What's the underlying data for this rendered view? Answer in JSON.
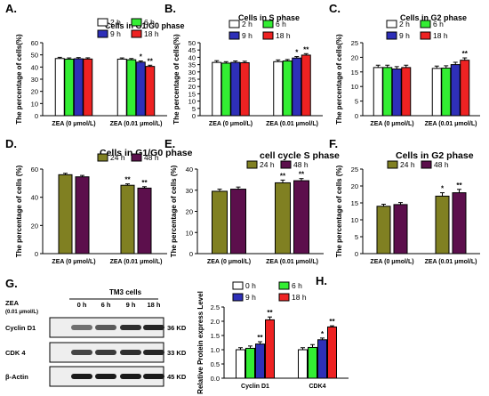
{
  "panels": [
    {
      "letter": "A.",
      "chart_data": {
        "type": "bar",
        "title": "Cells in G1/G0 phase",
        "ylabel": "The percentage of cells(%)",
        "xlabel": "",
        "ylim": [
          0,
          60
        ],
        "yticks": [
          0,
          10,
          20,
          30,
          40,
          50,
          60
        ],
        "categories": [
          "ZEA (0 μmol/L)",
          "ZEA (0.01 μmol/L)"
        ],
        "legend_position": "top-right",
        "series": [
          {
            "name": "2 h",
            "color": "#ffffff",
            "values": [
              47,
              46.5
            ],
            "err": [
              1.0,
              1.0
            ]
          },
          {
            "name": "6 h",
            "color": "#33ee33",
            "values": [
              46.5,
              46
            ],
            "err": [
              1.0,
              1.0
            ]
          },
          {
            "name": "9 h",
            "color": "#2e2fb8",
            "values": [
              46.8,
              44
            ],
            "err": [
              1.0,
              1.0
            ]
          },
          {
            "name": "18 h",
            "color": "#ee2222",
            "values": [
              46.6,
              40.5
            ],
            "err": [
              1.0,
              1.0
            ]
          }
        ],
        "annotations": [
          "",
          "",
          "",
          "",
          "",
          "",
          "*",
          "**"
        ]
      }
    },
    {
      "letter": "B.",
      "chart_data": {
        "type": "bar",
        "title": "Cells in S phase",
        "ylabel": "The percentage of cells(%)",
        "xlabel": "",
        "ylim": [
          0,
          50
        ],
        "yticks": [
          0,
          5,
          10,
          15,
          20,
          25,
          30,
          35,
          40,
          45,
          50
        ],
        "categories": [
          "ZEA (0 μmol/L)",
          "ZEA (0.01 μmol/L)"
        ],
        "legend_position": "top-right",
        "series": [
          {
            "name": "2 h",
            "color": "#ffffff",
            "values": [
              36.5,
              37
            ],
            "err": [
              1.2,
              1.2
            ]
          },
          {
            "name": "6 h",
            "color": "#33ee33",
            "values": [
              36,
              37.5
            ],
            "err": [
              1.0,
              1.0
            ]
          },
          {
            "name": "9 h",
            "color": "#2e2fb8",
            "values": [
              36.5,
              39.5
            ],
            "err": [
              1.0,
              1.0
            ]
          },
          {
            "name": "18 h",
            "color": "#ee2222",
            "values": [
              36.3,
              41.5
            ],
            "err": [
              1.0,
              1.0
            ]
          }
        ],
        "annotations": [
          "",
          "",
          "",
          "",
          "",
          "",
          "*",
          "**"
        ]
      }
    },
    {
      "letter": "C.",
      "chart_data": {
        "type": "bar",
        "title": "Cells in G2 phase",
        "ylabel": "The percentage of cells(%)",
        "xlabel": "",
        "ylim": [
          0,
          25
        ],
        "yticks": [
          0,
          5,
          10,
          15,
          20,
          25
        ],
        "categories": [
          "ZEA (0 μmol/L)",
          "ZEA (0.01 μmol/L)"
        ],
        "legend_position": "top-right",
        "series": [
          {
            "name": "2 h",
            "color": "#ffffff",
            "values": [
              16.5,
              16.2
            ],
            "err": [
              0.8,
              0.8
            ]
          },
          {
            "name": "6 h",
            "color": "#33ee33",
            "values": [
              16.5,
              16.3
            ],
            "err": [
              0.8,
              0.8
            ]
          },
          {
            "name": "9 h",
            "color": "#2e2fb8",
            "values": [
              16,
              17.5
            ],
            "err": [
              0.8,
              0.8
            ]
          },
          {
            "name": "18 h",
            "color": "#ee2222",
            "values": [
              16.5,
              19
            ],
            "err": [
              0.8,
              0.8
            ]
          }
        ],
        "annotations": [
          "",
          "",
          "",
          "",
          "",
          "",
          "",
          "**"
        ]
      }
    },
    {
      "letter": "D.",
      "chart_data": {
        "type": "bar",
        "title": "Cells in G1/G0 phase",
        "ylabel": "The percentage of cells (%)",
        "xlabel": "",
        "ylim": [
          0,
          60
        ],
        "yticks": [
          0,
          20,
          40,
          60
        ],
        "categories": [
          "ZEA (0 μmol/L)",
          "ZEA (0.01 μmol/L)"
        ],
        "legend_position": "top-right",
        "series": [
          {
            "name": "24 h",
            "color": "#808022",
            "values": [
              56,
              48.5
            ],
            "err": [
              1.0,
              1.0
            ]
          },
          {
            "name": "48 h",
            "color": "#5c0f4c",
            "values": [
              54.5,
              46.5
            ],
            "err": [
              1.0,
              1.0
            ]
          }
        ],
        "annotations": [
          "",
          "",
          "**",
          "**"
        ]
      }
    },
    {
      "letter": "E.",
      "chart_data": {
        "type": "bar",
        "title": "cell cycle S phase",
        "ylabel": "The percentage of cells (%)",
        "xlabel": "",
        "ylim": [
          0,
          40
        ],
        "yticks": [
          0,
          10,
          20,
          30,
          40
        ],
        "categories": [
          "ZEA (0 μmol/L)",
          "ZEA (0.01 μmol/L)"
        ],
        "legend_position": "top-right",
        "series": [
          {
            "name": "24 h",
            "color": "#808022",
            "values": [
              29.5,
              33.5
            ],
            "err": [
              1.0,
              1.3
            ]
          },
          {
            "name": "48 h",
            "color": "#5c0f4c",
            "values": [
              30.5,
              34.5
            ],
            "err": [
              1.0,
              1.0
            ]
          }
        ],
        "annotations": [
          "",
          "",
          "**",
          "**"
        ]
      }
    },
    {
      "letter": "F.",
      "chart_data": {
        "type": "bar",
        "title": "Cells in G2 phase",
        "ylabel": "The percentage of cells (%)",
        "xlabel": "",
        "ylim": [
          0,
          25
        ],
        "yticks": [
          0,
          5,
          10,
          15,
          20,
          25
        ],
        "categories": [
          "ZEA (0 μmol/L)",
          "ZEA (0.01 μmol/L)"
        ],
        "legend_position": "top-right",
        "series": [
          {
            "name": "24 h",
            "color": "#808022",
            "values": [
              14,
              17
            ],
            "err": [
              0.6,
              1.0
            ]
          },
          {
            "name": "48 h",
            "color": "#5c0f4c",
            "values": [
              14.5,
              18
            ],
            "err": [
              0.6,
              1.0
            ]
          }
        ],
        "annotations": [
          "",
          "",
          "*",
          "**"
        ]
      }
    },
    {
      "letter": "H.",
      "chart_data": {
        "type": "bar",
        "title": "",
        "ylabel": "Relative Protein express Level",
        "xlabel": "",
        "ylim": [
          0,
          2.5
        ],
        "yticks": [
          0.0,
          0.5,
          1.0,
          1.5,
          2.0,
          2.5
        ],
        "categories": [
          "Cyclin D1",
          "CDK4"
        ],
        "legend_position": "top-left",
        "series": [
          {
            "name": "0 h",
            "color": "#ffffff",
            "values": [
              1.0,
              1.0
            ],
            "err": [
              0.07,
              0.07
            ]
          },
          {
            "name": "6 h",
            "color": "#33ee33",
            "values": [
              1.05,
              1.08
            ],
            "err": [
              0.08,
              0.1
            ]
          },
          {
            "name": "9 h",
            "color": "#2e2fb8",
            "values": [
              1.2,
              1.35
            ],
            "err": [
              0.08,
              0.06
            ]
          },
          {
            "name": "18 h",
            "color": "#ee2222",
            "values": [
              2.05,
              1.8
            ],
            "err": [
              0.1,
              0.04
            ]
          }
        ],
        "annotations": [
          "",
          "",
          "**",
          "**",
          "",
          "",
          "*",
          "**"
        ]
      }
    }
  ],
  "blot": {
    "letter": "G.",
    "title": "TM3 cells",
    "treatment_label": "ZEA",
    "unit_label": "(0.01 μmol/L)",
    "time_labels": [
      "0 h",
      "6 h",
      "9 h",
      "18 h"
    ],
    "rows": [
      {
        "protein": "Cyclin D1",
        "size": "36 KD",
        "intensities": [
          0.55,
          0.65,
          0.85,
          0.9
        ]
      },
      {
        "protein": "CDK 4",
        "size": "33 KD",
        "intensities": [
          0.75,
          0.8,
          0.85,
          0.9
        ]
      },
      {
        "protein": "β-Actin",
        "size": "45 KD",
        "intensities": [
          0.95,
          0.95,
          0.95,
          0.95
        ]
      }
    ]
  }
}
